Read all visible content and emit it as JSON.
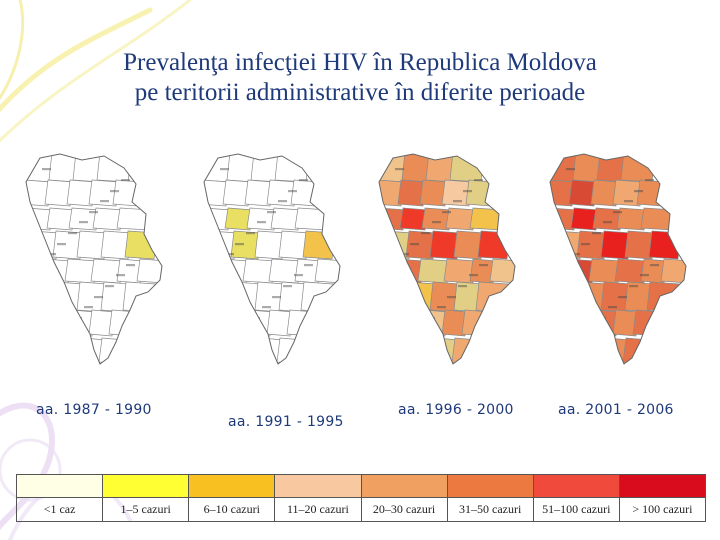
{
  "title": {
    "line1": "Prevalenţa infecţiei HIV în Republica Moldova",
    "line2": "pe teritorii administrative în diferite perioade"
  },
  "maps": [
    {
      "period": "aa. 1987 - 1990",
      "fills": [
        "#ffffff",
        "#ffffff",
        "#ffffff",
        "#ffffff",
        "#ffffff",
        "#ffffff",
        "#ffffff",
        "#ffffff",
        "#ffffff",
        "#ffffff",
        "#ffffff",
        "#ffffff",
        "#ffffff",
        "#ffffff",
        "#ffffff",
        "#ffffff",
        "#ffffff",
        "#ffffff",
        "#e9df63",
        "#ffffff",
        "#ffffff",
        "#ffffff",
        "#ffffff",
        "#ffffff",
        "#ffffff",
        "#ffffff",
        "#ffffff",
        "#ffffff"
      ]
    },
    {
      "period": "aa. 1991 - 1995",
      "fills": [
        "#ffffff",
        "#ffffff",
        "#ffffff",
        "#ffffff",
        "#ffffff",
        "#ffffff",
        "#ffffff",
        "#ffffff",
        "#ffffff",
        "#ffffff",
        "#e9df63",
        "#ffffff",
        "#ffffff",
        "#ffffff",
        "#ffffff",
        "#e9df63",
        "#ffffff",
        "#ffffff",
        "#f2c24a",
        "#ffffff",
        "#ffffff",
        "#ffffff",
        "#ffffff",
        "#ffffff",
        "#ffffff",
        "#ffffff",
        "#ffffff",
        "#ffffff"
      ]
    },
    {
      "period": "aa. 1996 - 2000",
      "fills": [
        "#f0c28c",
        "#e98c55",
        "#f0a870",
        "#e2cf86",
        "#eea870",
        "#e47148",
        "#e98c55",
        "#f6c9a0",
        "#e2cf86",
        "#e47148",
        "#ef3a2a",
        "#e98c55",
        "#f0a870",
        "#f2c24a",
        "#e2cf86",
        "#e47148",
        "#ef3a2a",
        "#e98c55",
        "#ef3a2a",
        "#e47148",
        "#e2cf86",
        "#f0a870",
        "#e98c55",
        "#f0c28c",
        "#f2c24a",
        "#e98c55",
        "#e2cf86",
        "#f0a870"
      ]
    },
    {
      "period": "aa. 2001 - 2006",
      "fills": [
        "#e47148",
        "#e98c55",
        "#e47148",
        "#e98c55",
        "#e47148",
        "#d94a35",
        "#e98c55",
        "#f0a870",
        "#e98c55",
        "#e47148",
        "#e8211f",
        "#e47148",
        "#e98c55",
        "#e98c55",
        "#f0a870",
        "#e47148",
        "#e8211f",
        "#e47148",
        "#e8211f",
        "#d94a35",
        "#e98c55",
        "#e47148",
        "#e98c55",
        "#f0a870",
        "#e98c55",
        "#e47148",
        "#e98c55",
        "#e47148"
      ]
    }
  ],
  "legend": [
    {
      "label": "<1 caz",
      "color": "#ffffe6"
    },
    {
      "label": "1–5 cazuri",
      "color": "#ffff33"
    },
    {
      "label": "6–10 cazuri",
      "color": "#f8c020"
    },
    {
      "label": "11–20 cazuri",
      "color": "#f8c8a0"
    },
    {
      "label": "20–30 cazuri",
      "color": "#f0a060"
    },
    {
      "label": "31–50 cazuri",
      "color": "#ec7a40"
    },
    {
      "label": "51–100 cazuri",
      "color": "#ef4a3c"
    },
    {
      "label": "> 100 cazuri",
      "color": "#d80c1c"
    }
  ]
}
